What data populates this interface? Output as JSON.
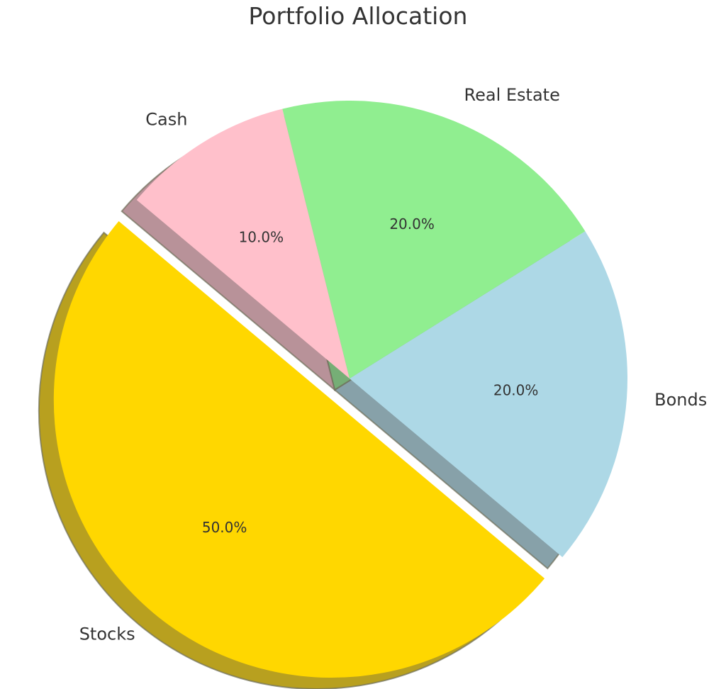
{
  "chart_data": {
    "type": "pie",
    "title": "Portfolio Allocation",
    "slices": [
      {
        "label": "Stocks",
        "value": 50,
        "pct_label": "50.0%",
        "color": "#FFD700",
        "exploded": true
      },
      {
        "label": "Bonds",
        "value": 20,
        "pct_label": "20.0%",
        "color": "#ADD8E6",
        "exploded": false
      },
      {
        "label": "Real Estate",
        "value": 20,
        "pct_label": "20.0%",
        "color": "#90EE90",
        "exploded": false
      },
      {
        "label": "Cash",
        "value": 10,
        "pct_label": "10.0%",
        "color": "#FFC0CB",
        "exploded": false
      }
    ],
    "start_angle_deg": 140,
    "shadow": true,
    "legend": "none"
  }
}
